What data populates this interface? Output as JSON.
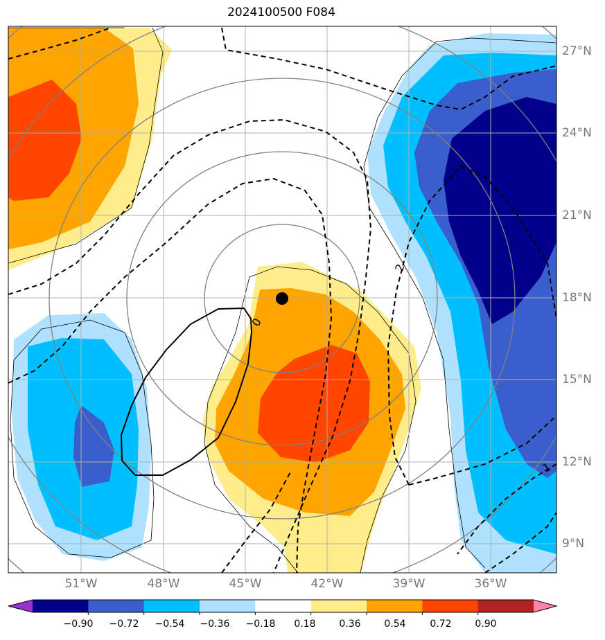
{
  "title": "2024100500 F084",
  "axes": {
    "lon_labels": [
      "51°W",
      "48°W",
      "45°W",
      "42°W",
      "39°W",
      "36°W"
    ],
    "lat_labels": [
      "27°N",
      "24°N",
      "21°N",
      "18°N",
      "15°N",
      "12°N",
      "9°N"
    ],
    "lon_range": [
      -53.6,
      -33.5
    ],
    "lat_range": [
      7.9,
      27.9
    ]
  },
  "colorbar": {
    "ticks": [
      "−0.90",
      "−0.72",
      "−0.54",
      "−0.36",
      "−0.18",
      "0.18",
      "0.36",
      "0.54",
      "0.72",
      "0.90"
    ],
    "bins": [
      {
        "range": "< -0.90",
        "color": "#9932CC"
      },
      {
        "range": "-0.90 to -0.72",
        "color": "#00008B"
      },
      {
        "range": "-0.72 to -0.54",
        "color": "#3A5FCD"
      },
      {
        "range": "-0.54 to -0.36",
        "color": "#00BFFF"
      },
      {
        "range": "-0.36 to -0.18",
        "color": "#B0E2FF"
      },
      {
        "range": "-0.18 to 0.18",
        "color": "#FFFFFF"
      },
      {
        "range": "0.18 to 0.36",
        "color": "#FFEC8B"
      },
      {
        "range": "0.36 to 0.54",
        "color": "#FFA500"
      },
      {
        "range": "0.54 to 0.72",
        "color": "#FF4500"
      },
      {
        "range": "0.72 to 0.90",
        "color": "#B22222"
      },
      {
        "range": "> 0.90",
        "color": "#FF82AB"
      }
    ]
  },
  "contour_labels": {
    "solid_zero": "0",
    "dashed_two": "2",
    "dashed_one": "1"
  },
  "storm_center": {
    "lon": -43.7,
    "lat": 17.9
  },
  "range_ring_center": {
    "lon": -43.7,
    "lat": 17.9
  },
  "range_ring_radii_deg": [
    3,
    6,
    9,
    12,
    15
  ],
  "colors": {
    "grid": "#b0b0b0",
    "ring": "#808080",
    "frame": "#000000"
  }
}
